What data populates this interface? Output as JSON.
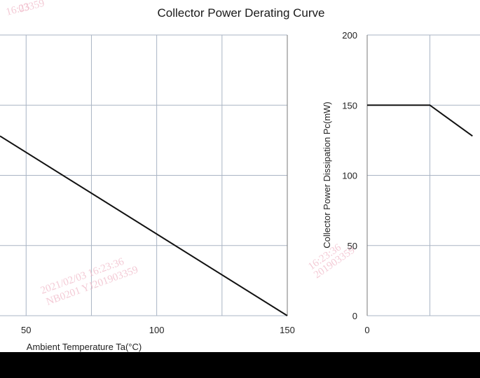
{
  "chart_data": [
    {
      "type": "line",
      "title": "Collector Power Derating Curve",
      "xlabel": "Ambient Temperature Ta(°C)",
      "ylabel": "",
      "xlim": [
        40,
        150
      ],
      "ylim": [
        0,
        200
      ],
      "x_ticks": [
        "50",
        "100",
        "150"
      ],
      "y_ticks": [],
      "grid": true,
      "series": [
        {
          "x": [
            40,
            150
          ],
          "y": [
            128,
            0
          ]
        }
      ]
    },
    {
      "type": "line",
      "title": "",
      "xlabel": "",
      "ylabel": "Collector Power Dissipation  Pc(mW)",
      "xlim": [
        0,
        45
      ],
      "ylim": [
        0,
        200
      ],
      "x_ticks": [
        "0"
      ],
      "y_ticks": [
        "0",
        "50",
        "100",
        "150",
        "200"
      ],
      "grid": true,
      "series": [
        {
          "x": [
            0,
            25,
            42
          ],
          "y": [
            150,
            150,
            128
          ]
        }
      ]
    }
  ],
  "watermarks": [
    "2021/02/03 16:23:36",
    "NB0201 YJ201903359",
    "16:23:36",
    "201903359",
    "16:23",
    "03359"
  ],
  "colors": {
    "line": "#111111",
    "grid": "#a9b4c4",
    "frame": "#7a7a7a",
    "watermark": "#f0b9c8"
  }
}
